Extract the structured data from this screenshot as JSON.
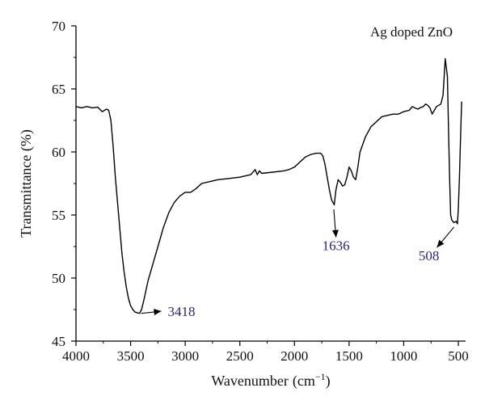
{
  "chart_data": {
    "type": "line",
    "legend_text": "Ag doped ZnO",
    "legend_placement": "top-right",
    "xlabel": "Wavenumber",
    "xlabel_unit": "(cm",
    "xlabel_unit_sup": "−1",
    "xlabel_unit_close": ")",
    "ylabel": "Transmittance (%)",
    "xlim": [
      4000,
      450
    ],
    "x_reversed": true,
    "ylim": [
      45,
      70
    ],
    "grid": false,
    "line_color": "#000000",
    "annotation_color": "#2e1f7a",
    "x_ticks": [
      4000,
      3500,
      3000,
      2500,
      2000,
      1500,
      1000,
      500
    ],
    "x_tick_labels": [
      "4000",
      "3500",
      "3000",
      "2500",
      "2000",
      "1500",
      "1000",
      "500"
    ],
    "y_ticks": [
      45,
      50,
      55,
      60,
      65,
      70
    ],
    "y_tick_labels": [
      "45",
      "50",
      "55",
      "60",
      "65",
      "70"
    ],
    "series": [
      {
        "points": [
          [
            4000,
            63.6
          ],
          [
            3950,
            63.5
          ],
          [
            3900,
            63.6
          ],
          [
            3850,
            63.5
          ],
          [
            3800,
            63.55
          ],
          [
            3760,
            63.2
          ],
          [
            3720,
            63.4
          ],
          [
            3700,
            63.3
          ],
          [
            3680,
            62.5
          ],
          [
            3660,
            60.5
          ],
          [
            3640,
            58.0
          ],
          [
            3620,
            56.0
          ],
          [
            3600,
            54.0
          ],
          [
            3580,
            52.0
          ],
          [
            3560,
            50.5
          ],
          [
            3540,
            49.3
          ],
          [
            3520,
            48.4
          ],
          [
            3500,
            47.8
          ],
          [
            3480,
            47.5
          ],
          [
            3460,
            47.3
          ],
          [
            3440,
            47.25
          ],
          [
            3418,
            47.2
          ],
          [
            3400,
            47.5
          ],
          [
            3380,
            48.2
          ],
          [
            3360,
            49.0
          ],
          [
            3340,
            49.8
          ],
          [
            3320,
            50.4
          ],
          [
            3300,
            51.0
          ],
          [
            3250,
            52.5
          ],
          [
            3200,
            54.0
          ],
          [
            3150,
            55.2
          ],
          [
            3100,
            56.0
          ],
          [
            3050,
            56.5
          ],
          [
            3000,
            56.8
          ],
          [
            2950,
            56.8
          ],
          [
            2900,
            57.1
          ],
          [
            2850,
            57.5
          ],
          [
            2800,
            57.6
          ],
          [
            2700,
            57.8
          ],
          [
            2600,
            57.9
          ],
          [
            2500,
            58.0
          ],
          [
            2400,
            58.2
          ],
          [
            2380,
            58.4
          ],
          [
            2360,
            58.6
          ],
          [
            2340,
            58.2
          ],
          [
            2320,
            58.5
          ],
          [
            2300,
            58.3
          ],
          [
            2200,
            58.4
          ],
          [
            2100,
            58.5
          ],
          [
            2050,
            58.6
          ],
          [
            2000,
            58.8
          ],
          [
            1950,
            59.2
          ],
          [
            1900,
            59.6
          ],
          [
            1850,
            59.8
          ],
          [
            1800,
            59.9
          ],
          [
            1760,
            59.9
          ],
          [
            1740,
            59.7
          ],
          [
            1720,
            59.0
          ],
          [
            1700,
            58.0
          ],
          [
            1680,
            57.0
          ],
          [
            1660,
            56.2
          ],
          [
            1636,
            55.8
          ],
          [
            1620,
            57.0
          ],
          [
            1600,
            57.8
          ],
          [
            1580,
            57.6
          ],
          [
            1560,
            57.3
          ],
          [
            1540,
            57.4
          ],
          [
            1520,
            58.0
          ],
          [
            1500,
            58.8
          ],
          [
            1480,
            58.5
          ],
          [
            1460,
            58.0
          ],
          [
            1440,
            57.8
          ],
          [
            1420,
            58.8
          ],
          [
            1400,
            60.0
          ],
          [
            1350,
            61.2
          ],
          [
            1300,
            62.0
          ],
          [
            1250,
            62.4
          ],
          [
            1200,
            62.8
          ],
          [
            1150,
            62.9
          ],
          [
            1100,
            63.0
          ],
          [
            1050,
            63.0
          ],
          [
            1000,
            63.2
          ],
          [
            950,
            63.3
          ],
          [
            920,
            63.6
          ],
          [
            900,
            63.5
          ],
          [
            870,
            63.4
          ],
          [
            850,
            63.5
          ],
          [
            820,
            63.6
          ],
          [
            800,
            63.8
          ],
          [
            780,
            63.7
          ],
          [
            760,
            63.5
          ],
          [
            740,
            63.0
          ],
          [
            720,
            63.3
          ],
          [
            700,
            63.6
          ],
          [
            680,
            63.7
          ],
          [
            660,
            63.8
          ],
          [
            640,
            64.5
          ],
          [
            620,
            67.4
          ],
          [
            600,
            66.0
          ],
          [
            590,
            62.0
          ],
          [
            580,
            58.0
          ],
          [
            570,
            55.0
          ],
          [
            560,
            54.6
          ],
          [
            540,
            54.4
          ],
          [
            520,
            54.5
          ],
          [
            508,
            54.3
          ],
          [
            500,
            55.5
          ],
          [
            490,
            58.0
          ],
          [
            480,
            61.0
          ],
          [
            470,
            64.0
          ]
        ]
      }
    ],
    "annotations": [
      {
        "text": "3418",
        "peak_x": 3418,
        "peak_y": 47.2,
        "label_x": 3160,
        "label_y": 47.5
      },
      {
        "text": "1636",
        "peak_x": 1640,
        "peak_y": 55.7,
        "label_x": 1620,
        "label_y": 52.2
      },
      {
        "text": "508",
        "peak_x": 540,
        "peak_y": 54.3,
        "label_x": 740,
        "label_y": 51.4
      }
    ]
  }
}
